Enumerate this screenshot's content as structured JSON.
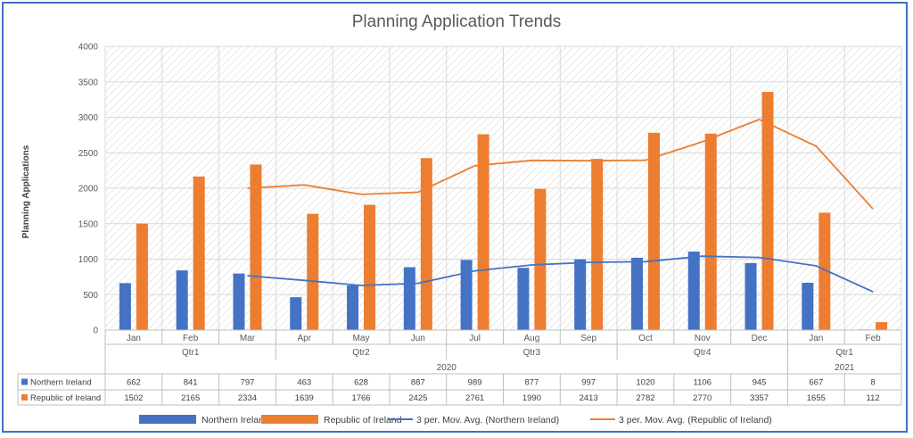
{
  "chart_data": {
    "type": "bar",
    "title": "Planning Application Trends",
    "ylabel": "Planning Applications",
    "ylim": [
      0,
      4000
    ],
    "yticks": [
      0,
      500,
      1000,
      1500,
      2000,
      2500,
      3000,
      3500,
      4000
    ],
    "categories": [
      "Jan",
      "Feb",
      "Mar",
      "Apr",
      "May",
      "Jun",
      "Jul",
      "Aug",
      "Sep",
      "Oct",
      "Nov",
      "Dec",
      "Jan",
      "Feb"
    ],
    "quarters": [
      {
        "label": "Qtr1",
        "start": 0,
        "end": 2
      },
      {
        "label": "Qtr2",
        "start": 3,
        "end": 5
      },
      {
        "label": "Qtr3",
        "start": 6,
        "end": 8
      },
      {
        "label": "Qtr4",
        "start": 9,
        "end": 11
      },
      {
        "label": "Qtr1",
        "start": 12,
        "end": 13
      }
    ],
    "years": [
      {
        "label": "2020",
        "start": 0,
        "end": 11
      },
      {
        "label": "2021",
        "start": 12,
        "end": 13
      }
    ],
    "grid": true,
    "legend_position": "bottom",
    "series": [
      {
        "name": "Northern Ireland",
        "color": "#4472c4",
        "values": [
          662,
          841,
          797,
          463,
          628,
          887,
          989,
          877,
          997,
          1020,
          1106,
          945,
          667,
          8
        ]
      },
      {
        "name": "Republic of Ireland",
        "color": "#ed7d31",
        "values": [
          1502,
          2165,
          2334,
          1639,
          1766,
          2425,
          2761,
          1990,
          2413,
          2782,
          2770,
          3357,
          1655,
          112
        ]
      }
    ],
    "trendlines": [
      {
        "name": "3 per. Mov. Avg. (Northern Ireland)",
        "color": "#4472c4",
        "period": 3
      },
      {
        "name": "3 per. Mov. Avg. (Republic of Ireland)",
        "color": "#ed7d31",
        "period": 3
      }
    ]
  }
}
